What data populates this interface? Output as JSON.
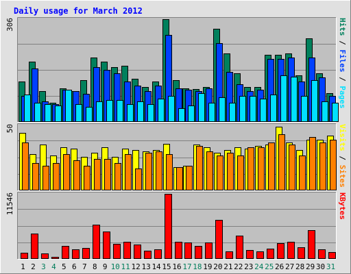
{
  "chart_data": {
    "type": "bar",
    "title": "Daily usage for March 2012",
    "colors": {
      "background": "#e0e0e0",
      "panel": "#c0c0c0",
      "title": "#0000ff",
      "grid": "#808080",
      "weekend_label": "#007c5a",
      "weekday_label": "#000000",
      "hits": "#00805c",
      "files": "#0040ff",
      "pages": "#00e0ff",
      "visits": "#ffff00",
      "sites": "#ff8000",
      "kbytes": "#ff0000"
    },
    "categories": [
      "1",
      "2",
      "3",
      "4",
      "5",
      "6",
      "7",
      "8",
      "9",
      "10",
      "11",
      "12",
      "13",
      "14",
      "15",
      "16",
      "17",
      "18",
      "19",
      "20",
      "21",
      "22",
      "23",
      "24",
      "25",
      "26",
      "27",
      "28",
      "29",
      "30",
      "31"
    ],
    "weekend_days": [
      "3",
      "4",
      "10",
      "11",
      "17",
      "18",
      "24",
      "25",
      "31"
    ],
    "panels": [
      {
        "id": "hits",
        "max_label": "306",
        "ymax": 306,
        "legend": [
          {
            "text": "Pages",
            "color": "#00e0ff"
          },
          {
            "text": " / ",
            "color": "#000000"
          },
          {
            "text": "Files",
            "color": "#0040ff"
          },
          {
            "text": " / ",
            "color": "#000000"
          },
          {
            "text": "Hits",
            "color": "#00805c"
          }
        ],
        "series": [
          {
            "name": "Hits",
            "color": "#00805c",
            "values": [
              120,
              179,
              92,
              57,
              100,
              92,
              124,
              191,
              179,
              164,
              168,
              128,
              104,
              120,
              306,
              124,
              100,
              98,
              104,
              277,
              205,
              145,
              104,
              104,
              200,
              199,
              203,
              139,
              248,
              144,
              85
            ]
          },
          {
            "name": "Files",
            "color": "#0040ff",
            "values": [
              77,
              160,
              61,
              53,
              96,
              92,
              84,
              164,
              156,
              144,
              120,
              108,
              92,
              108,
              260,
              100,
              96,
              92,
              100,
              235,
              148,
              112,
              92,
              96,
              187,
              187,
              191,
              120,
              191,
              132,
              77
            ]
          },
          {
            "name": "Pages",
            "color": "#00e0ff",
            "values": [
              81,
              57,
              53,
              49,
              96,
              53,
              45,
              61,
              65,
              65,
              53,
              61,
              53,
              69,
              77,
              41,
              49,
              85,
              57,
              73,
              57,
              77,
              77,
              69,
              81,
              139,
              135,
              77,
              124,
              61,
              57
            ]
          }
        ]
      },
      {
        "id": "visits",
        "max_label": "50",
        "ymax": 50,
        "legend": [
          {
            "text": "Sites",
            "color": "#ff8000"
          },
          {
            "text": " / ",
            "color": "#000000"
          },
          {
            "text": "Visits",
            "color": "#ffff00"
          }
        ],
        "series": [
          {
            "name": "Visits",
            "color": "#ffff00",
            "values": [
              44,
              28,
              35,
              27,
              33,
              32,
              26,
              29,
              33,
              26,
              32,
              31,
              30,
              31,
              36,
              18,
              19,
              35,
              33,
              29,
              31,
              33,
              32,
              34,
              35,
              49,
              37,
              31,
              39,
              39,
              42
            ]
          },
          {
            "name": "Sites",
            "color": "#ff8000",
            "values": [
              37,
              21,
              19,
              21,
              28,
              23,
              19,
              24,
              24,
              21,
              28,
              17,
              29,
              30,
              28,
              18,
              19,
              34,
              30,
              27,
              29,
              27,
              33,
              33,
              37,
              43,
              35,
              27,
              41,
              37,
              39
            ]
          }
        ]
      },
      {
        "id": "kbytes",
        "max_label": "11546",
        "ymax": 11546,
        "legend": [
          {
            "text": "KBytes",
            "color": "#ff0000"
          }
        ],
        "series": [
          {
            "name": "KBytes",
            "color": "#ff0000",
            "values": [
              1120,
              4450,
              950,
              420,
              2300,
              1730,
              2000,
              6020,
              4920,
              2640,
              3020,
              2600,
              1400,
              1740,
              11546,
              3070,
              2960,
              2300,
              2870,
              6900,
              1370,
              4190,
              1530,
              1280,
              1880,
              2850,
              3060,
              2060,
              5070,
              1650,
              1220
            ]
          }
        ]
      }
    ]
  }
}
